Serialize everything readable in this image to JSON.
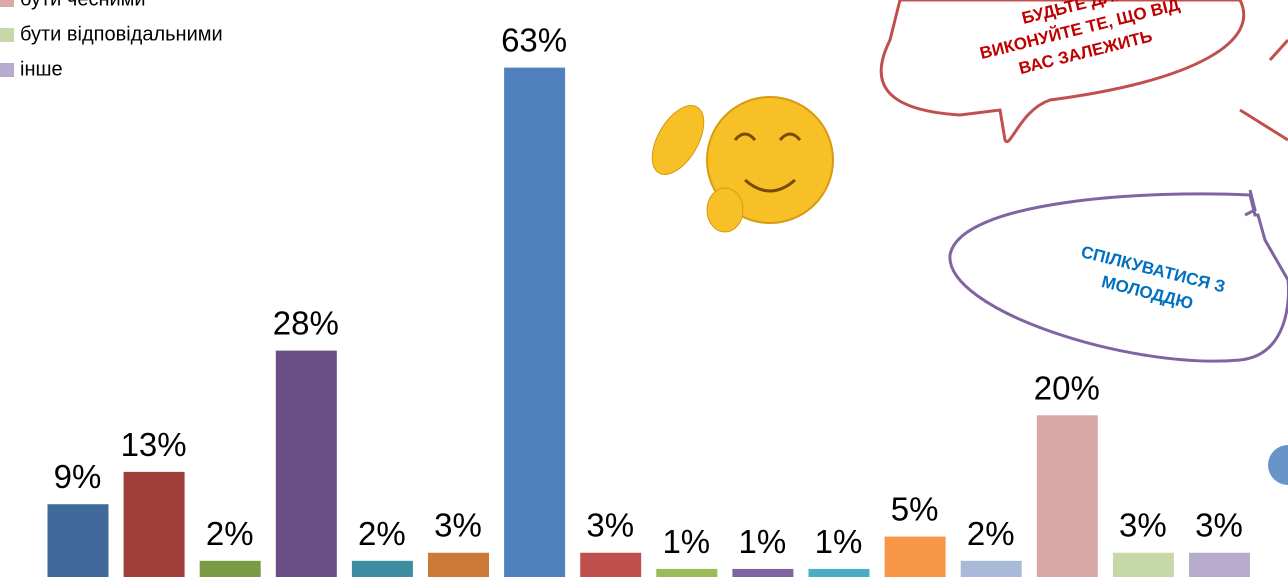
{
  "chart_data": {
    "type": "bar",
    "categories": [
      null,
      null,
      null,
      null,
      null,
      null,
      null,
      null,
      null,
      null,
      null,
      null,
      null,
      null,
      null,
      null
    ],
    "values": [
      9,
      13,
      2,
      28,
      2,
      3,
      63,
      3,
      1,
      1,
      1,
      5,
      2,
      20,
      3,
      3
    ],
    "value_labels": [
      "9%",
      "13%",
      "2%",
      "28%",
      "2%",
      "3%",
      "63%",
      "3%",
      "1%",
      "1%",
      "1%",
      "5%",
      "2%",
      "20%",
      "3%",
      "3%"
    ],
    "colors": [
      "#3f6a9b",
      "#9e3f3b",
      "#7b9a45",
      "#694f86",
      "#3c8ea0",
      "#cc7a37",
      "#4f81bd",
      "#c0504d",
      "#9bbb59",
      "#8064a2",
      "#4bacc6",
      "#f79646",
      "#a9b9d8",
      "#d9a8a7",
      "#c7d8a8",
      "#b8acce"
    ],
    "ylim": [
      0,
      70
    ],
    "legend": [
      {
        "name": "бути чесними",
        "color": "#d9a8a7"
      },
      {
        "name": "бути відповідальними",
        "color": "#c7d8a8"
      },
      {
        "name": "інше",
        "color": "#b8acce"
      }
    ],
    "annotations": [
      {
        "lines": [
          "БУДЬТЕ ДЛЯ",
          "ВИКОНУЙТЕ ТЕ, ЩО ВІД",
          "ВАС ЗАЛЕЖИТЬ"
        ],
        "color": "#c00000"
      },
      {
        "lines": [
          "СПІЛКУВАТИСЯ З",
          "МОЛОДДЮ"
        ],
        "color": "#0070c0"
      }
    ]
  }
}
